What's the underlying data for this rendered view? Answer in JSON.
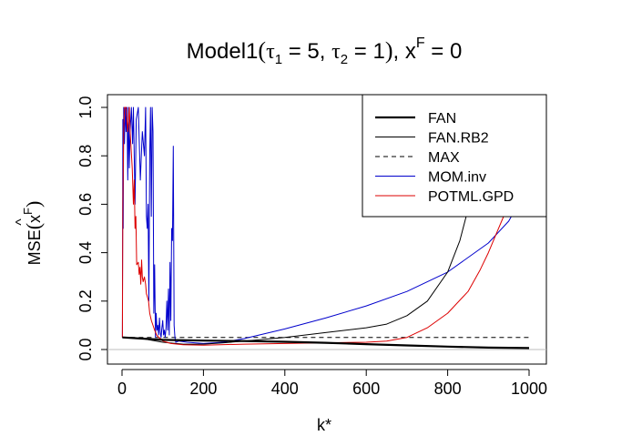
{
  "chart_data": {
    "type": "line",
    "title": "Model1(τ₁ = 5, τ₂ = 1), x^F = 0",
    "title_parts": {
      "pre": "Model1",
      "t1": "τ",
      "t1_sub": "1",
      "t1_val": " = 5, ",
      "t2": "τ",
      "t2_sub": "2",
      "t2_val": " = 1",
      "tail": ", x",
      "tail_sup": "F",
      "tail_val": " = 0"
    },
    "xlabel": "k*",
    "ylabel": "MSE(x̂^F)",
    "ylabel_parts": {
      "pre": "MSE",
      "x": "x",
      "sup": "F",
      "hat": "^"
    },
    "xlim": [
      0,
      1000
    ],
    "ylim": [
      0,
      1.0
    ],
    "x_ticks": [
      0,
      200,
      400,
      600,
      800,
      1000
    ],
    "y_ticks": [
      0.0,
      0.2,
      0.4,
      0.6,
      0.8,
      1.0
    ],
    "x_tick_labels": [
      "0",
      "200",
      "400",
      "600",
      "800",
      "1000"
    ],
    "y_tick_labels": [
      "0.0",
      "0.2",
      "0.4",
      "0.6",
      "0.8",
      "1.0"
    ],
    "hline": 0,
    "legend_position": "top-right",
    "series": [
      {
        "name": "FAN",
        "color": "#000000",
        "width": 2.2,
        "dash": "",
        "points": [
          [
            1,
            0.05
          ],
          [
            50,
            0.045
          ],
          [
            100,
            0.04
          ],
          [
            200,
            0.037
          ],
          [
            300,
            0.035
          ],
          [
            400,
            0.032
          ],
          [
            500,
            0.028
          ],
          [
            600,
            0.022
          ],
          [
            700,
            0.017
          ],
          [
            800,
            0.012
          ],
          [
            900,
            0.008
          ],
          [
            1000,
            0.006
          ]
        ]
      },
      {
        "name": "FAN.RB2",
        "color": "#000000",
        "width": 1,
        "dash": "",
        "points": [
          [
            1,
            0.05
          ],
          [
            50,
            0.045
          ],
          [
            100,
            0.03
          ],
          [
            150,
            0.022
          ],
          [
            200,
            0.022
          ],
          [
            250,
            0.028
          ],
          [
            300,
            0.035
          ],
          [
            400,
            0.05
          ],
          [
            500,
            0.07
          ],
          [
            600,
            0.09
          ],
          [
            650,
            0.105
          ],
          [
            700,
            0.14
          ],
          [
            750,
            0.2
          ],
          [
            800,
            0.32
          ],
          [
            830,
            0.45
          ],
          [
            850,
            0.58
          ],
          [
            870,
            0.75
          ],
          [
            885,
            0.9
          ],
          [
            900,
            1.0
          ]
        ]
      },
      {
        "name": "MAX",
        "color": "#000000",
        "width": 1,
        "dash": "5,4",
        "points": [
          [
            1,
            0.05
          ],
          [
            1000,
            0.05
          ]
        ]
      },
      {
        "name": "MOM.inv",
        "color": "#0000cc",
        "width": 1,
        "dash": "",
        "points": [
          [
            1,
            0.05
          ],
          [
            2,
            0.95
          ],
          [
            3,
            0.5
          ],
          [
            4,
            1.0
          ],
          [
            6,
            0.85
          ],
          [
            8,
            1.0
          ],
          [
            10,
            0.9
          ],
          [
            12,
            1.0
          ],
          [
            14,
            0.7
          ],
          [
            16,
            1.0
          ],
          [
            18,
            0.75
          ],
          [
            20,
            0.9
          ],
          [
            23,
            1.0
          ],
          [
            26,
            0.85
          ],
          [
            28,
            1.0
          ],
          [
            32,
            0.6
          ],
          [
            35,
            0.95
          ],
          [
            40,
            1.0
          ],
          [
            45,
            0.7
          ],
          [
            50,
            0.9
          ],
          [
            55,
            0.8
          ],
          [
            58,
            1.0
          ],
          [
            60,
            0.55
          ],
          [
            62,
            0.5
          ],
          [
            64,
            0.6
          ],
          [
            66,
            0.2
          ],
          [
            68,
            0.8
          ],
          [
            70,
            1.0
          ],
          [
            72,
            0.55
          ],
          [
            74,
            1.0
          ],
          [
            76,
            0.9
          ],
          [
            78,
            0.15
          ],
          [
            80,
            0.35
          ],
          [
            82,
            0.05
          ],
          [
            84,
            0.15
          ],
          [
            86,
            0.08
          ],
          [
            88,
            0.1
          ],
          [
            90,
            0.06
          ],
          [
            92,
            0.13
          ],
          [
            94,
            0.07
          ],
          [
            96,
            0.05
          ],
          [
            98,
            0.09
          ],
          [
            100,
            0.12
          ],
          [
            102,
            0.06
          ],
          [
            104,
            0.08
          ],
          [
            106,
            0.05
          ],
          [
            108,
            0.09
          ],
          [
            110,
            0.2
          ],
          [
            112,
            0.08
          ],
          [
            114,
            0.25
          ],
          [
            116,
            0.06
          ],
          [
            118,
            0.36
          ],
          [
            120,
            0.12
          ],
          [
            122,
            0.5
          ],
          [
            124,
            0.45
          ],
          [
            126,
            0.84
          ],
          [
            128,
            0.1
          ],
          [
            130,
            0.05
          ],
          [
            132,
            0.03
          ],
          [
            140,
            0.035
          ],
          [
            160,
            0.03
          ],
          [
            200,
            0.025
          ],
          [
            250,
            0.03
          ],
          [
            300,
            0.045
          ],
          [
            400,
            0.085
          ],
          [
            500,
            0.13
          ],
          [
            600,
            0.18
          ],
          [
            700,
            0.24
          ],
          [
            800,
            0.32
          ],
          [
            900,
            0.44
          ],
          [
            950,
            0.53
          ],
          [
            960,
            0.56
          ]
        ]
      },
      {
        "name": "POTML.GPD",
        "color": "#dd0000",
        "width": 1,
        "dash": "",
        "points": [
          [
            1,
            0.05
          ],
          [
            2,
            0.6
          ],
          [
            4,
            0.9
          ],
          [
            6,
            1.0
          ],
          [
            10,
            1.0
          ],
          [
            14,
            0.9
          ],
          [
            18,
            1.0
          ],
          [
            20,
            0.9
          ],
          [
            25,
            0.75
          ],
          [
            28,
            0.6
          ],
          [
            30,
            0.7
          ],
          [
            32,
            0.5
          ],
          [
            34,
            0.55
          ],
          [
            36,
            0.35
          ],
          [
            40,
            0.36
          ],
          [
            42,
            0.31
          ],
          [
            44,
            0.34
          ],
          [
            46,
            0.27
          ],
          [
            48,
            0.37
          ],
          [
            50,
            0.3
          ],
          [
            52,
            0.28
          ],
          [
            55,
            0.3
          ],
          [
            58,
            0.27
          ],
          [
            60,
            0.23
          ],
          [
            62,
            0.22
          ],
          [
            65,
            0.2
          ],
          [
            68,
            0.15
          ],
          [
            72,
            0.12
          ],
          [
            76,
            0.1
          ],
          [
            80,
            0.08
          ],
          [
            85,
            0.06
          ],
          [
            90,
            0.05
          ],
          [
            95,
            0.045
          ],
          [
            100,
            0.035
          ],
          [
            110,
            0.03
          ],
          [
            120,
            0.025
          ],
          [
            150,
            0.02
          ],
          [
            200,
            0.018
          ],
          [
            300,
            0.022
          ],
          [
            400,
            0.025
          ],
          [
            500,
            0.028
          ],
          [
            600,
            0.03
          ],
          [
            650,
            0.035
          ],
          [
            700,
            0.05
          ],
          [
            750,
            0.09
          ],
          [
            800,
            0.15
          ],
          [
            850,
            0.24
          ],
          [
            880,
            0.33
          ],
          [
            900,
            0.4
          ],
          [
            920,
            0.48
          ],
          [
            940,
            0.56
          ],
          [
            955,
            0.65
          ],
          [
            970,
            0.8
          ],
          [
            980,
            0.95
          ],
          [
            990,
            1.0
          ]
        ]
      }
    ]
  }
}
